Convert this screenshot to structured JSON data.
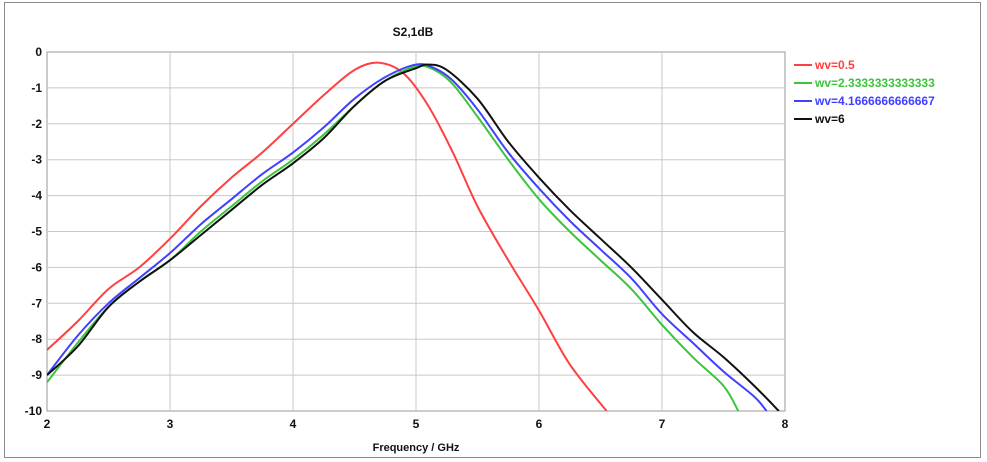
{
  "chart_data": {
    "type": "line",
    "title": "S2,1dB",
    "xlabel": "Frequency / GHz",
    "ylabel": "",
    "xlim": [
      2,
      8
    ],
    "ylim": [
      -10,
      0
    ],
    "x_ticks": [
      "2",
      "3",
      "4",
      "5",
      "6",
      "7",
      "8"
    ],
    "y_ticks": [
      "0",
      "-1",
      "-2",
      "-3",
      "-4",
      "-5",
      "-6",
      "-7",
      "-8",
      "-9",
      "-10"
    ],
    "grid": true,
    "legend_position": "right",
    "series": [
      {
        "name": "wv=0.5",
        "color": "#ff4040",
        "points": [
          [
            2,
            -8.3
          ],
          [
            2.25,
            -7.5
          ],
          [
            2.5,
            -6.6
          ],
          [
            2.75,
            -6.0
          ],
          [
            3,
            -5.2
          ],
          [
            3.25,
            -4.3
          ],
          [
            3.5,
            -3.5
          ],
          [
            3.75,
            -2.8
          ],
          [
            4,
            -2.0
          ],
          [
            4.25,
            -1.2
          ],
          [
            4.5,
            -0.5
          ],
          [
            4.7,
            -0.3
          ],
          [
            4.9,
            -0.6
          ],
          [
            5.1,
            -1.5
          ],
          [
            5.3,
            -2.8
          ],
          [
            5.5,
            -4.3
          ],
          [
            5.75,
            -5.8
          ],
          [
            6,
            -7.2
          ],
          [
            6.25,
            -8.7
          ],
          [
            6.55,
            -10
          ]
        ]
      },
      {
        "name": "wv=2.3333333333333",
        "color": "#3cc43c",
        "points": [
          [
            2,
            -9.2
          ],
          [
            2.25,
            -8.1
          ],
          [
            2.5,
            -7.1
          ],
          [
            2.75,
            -6.4
          ],
          [
            3,
            -5.8
          ],
          [
            3.25,
            -5.0
          ],
          [
            3.5,
            -4.3
          ],
          [
            3.75,
            -3.6
          ],
          [
            4,
            -3.0
          ],
          [
            4.25,
            -2.3
          ],
          [
            4.5,
            -1.5
          ],
          [
            4.75,
            -0.8
          ],
          [
            5,
            -0.4
          ],
          [
            5.15,
            -0.5
          ],
          [
            5.3,
            -0.9
          ],
          [
            5.5,
            -1.8
          ],
          [
            5.75,
            -3.0
          ],
          [
            6,
            -4.1
          ],
          [
            6.25,
            -5.0
          ],
          [
            6.5,
            -5.8
          ],
          [
            6.75,
            -6.6
          ],
          [
            7,
            -7.6
          ],
          [
            7.25,
            -8.5
          ],
          [
            7.5,
            -9.3
          ],
          [
            7.62,
            -10
          ]
        ]
      },
      {
        "name": "wv=4.1666666666667",
        "color": "#4040ff",
        "points": [
          [
            2,
            -9.0
          ],
          [
            2.25,
            -7.9
          ],
          [
            2.5,
            -7.0
          ],
          [
            2.75,
            -6.3
          ],
          [
            3,
            -5.6
          ],
          [
            3.25,
            -4.8
          ],
          [
            3.5,
            -4.1
          ],
          [
            3.75,
            -3.4
          ],
          [
            4,
            -2.8
          ],
          [
            4.25,
            -2.1
          ],
          [
            4.5,
            -1.3
          ],
          [
            4.75,
            -0.7
          ],
          [
            5,
            -0.35
          ],
          [
            5.15,
            -0.45
          ],
          [
            5.3,
            -0.8
          ],
          [
            5.5,
            -1.6
          ],
          [
            5.75,
            -2.8
          ],
          [
            6,
            -3.8
          ],
          [
            6.25,
            -4.7
          ],
          [
            6.5,
            -5.5
          ],
          [
            6.75,
            -6.3
          ],
          [
            7,
            -7.3
          ],
          [
            7.25,
            -8.1
          ],
          [
            7.5,
            -8.9
          ],
          [
            7.75,
            -9.6
          ],
          [
            7.85,
            -10
          ]
        ]
      },
      {
        "name": "wv=6",
        "color": "#111111",
        "points": [
          [
            2,
            -9.0
          ],
          [
            2.25,
            -8.2
          ],
          [
            2.5,
            -7.1
          ],
          [
            2.75,
            -6.4
          ],
          [
            3,
            -5.8
          ],
          [
            3.25,
            -5.1
          ],
          [
            3.5,
            -4.4
          ],
          [
            3.75,
            -3.7
          ],
          [
            4,
            -3.1
          ],
          [
            4.25,
            -2.4
          ],
          [
            4.5,
            -1.5
          ],
          [
            4.75,
            -0.8
          ],
          [
            5,
            -0.45
          ],
          [
            5.1,
            -0.35
          ],
          [
            5.25,
            -0.5
          ],
          [
            5.5,
            -1.3
          ],
          [
            5.75,
            -2.5
          ],
          [
            6,
            -3.5
          ],
          [
            6.25,
            -4.4
          ],
          [
            6.5,
            -5.2
          ],
          [
            6.75,
            -6.0
          ],
          [
            7,
            -6.9
          ],
          [
            7.25,
            -7.8
          ],
          [
            7.5,
            -8.5
          ],
          [
            7.75,
            -9.3
          ],
          [
            7.95,
            -10
          ]
        ]
      }
    ]
  }
}
